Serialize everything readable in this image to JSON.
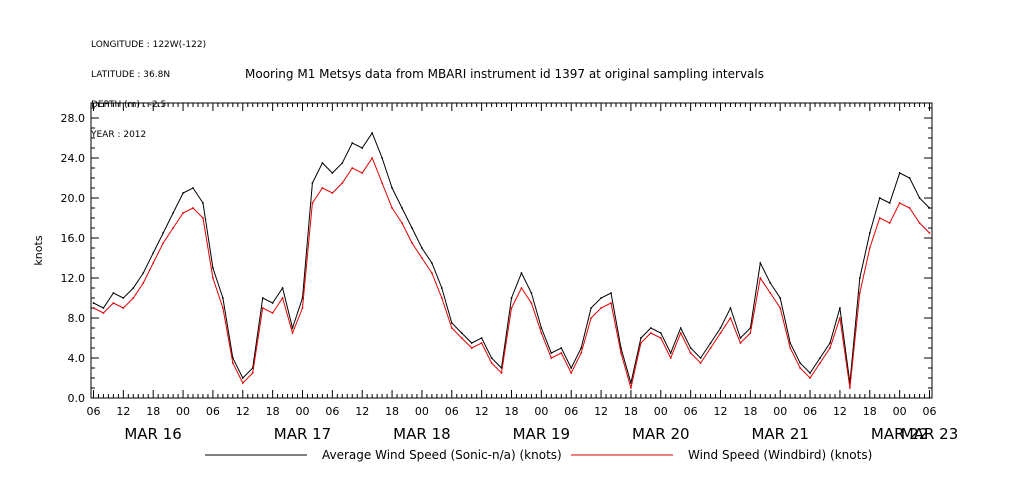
{
  "header": {
    "longitude": "LONGITUDE : 122W(-122)",
    "latitude": "LATITUDE : 36.8N",
    "depth": "DEPTH (m) : -2.5",
    "year": "YEAR : 2012"
  },
  "chart_data": {
    "type": "line",
    "title": "Mooring M1 Metsys data from MBARI instrument id 1397 at original sampling intervals",
    "ylabel": "knots",
    "xlabel": "",
    "ylim": [
      0,
      29.5
    ],
    "yticks": [
      "0.0",
      "4.0",
      "8.0",
      "12.0",
      "16.0",
      "20.0",
      "24.0",
      "28.0"
    ],
    "xlim_hours": [
      -0.5,
      168.5
    ],
    "hour_tick_labels": [
      "06",
      "12",
      "18",
      "00",
      "06",
      "12",
      "18",
      "00",
      "06",
      "12",
      "18",
      "00",
      "06",
      "12",
      "18",
      "00",
      "06",
      "12",
      "18",
      "00",
      "06",
      "12",
      "18",
      "00",
      "06",
      "12",
      "18",
      "00",
      "06"
    ],
    "date_labels": [
      "MAR 16",
      "MAR 17",
      "MAR 18",
      "MAR 19",
      "MAR 20",
      "MAR 21",
      "MAR 22",
      "MAR 23"
    ],
    "grid": false,
    "legend_position": "bottom",
    "colors": {
      "sonic": "#000000",
      "windbird": "#e00000"
    },
    "series": [
      {
        "name": "Average Wind Speed (Sonic-n/a) (knots)",
        "key": "sonic",
        "x_hours_from_mar16_06": [
          0,
          2,
          4,
          6,
          8,
          10,
          12,
          14,
          16,
          18,
          20,
          22,
          24,
          26,
          28,
          30,
          32,
          34,
          36,
          38,
          40,
          42,
          44,
          46,
          48,
          50,
          52,
          54,
          56,
          58,
          60,
          62,
          64,
          66,
          68,
          70,
          72,
          74,
          76,
          78,
          80,
          82,
          84,
          86,
          88,
          90,
          92,
          94,
          96,
          98,
          100,
          102,
          104,
          106,
          108,
          110,
          112,
          114,
          116,
          118,
          120,
          122,
          124,
          126,
          128,
          130,
          132,
          134,
          136,
          138,
          140,
          142,
          144,
          146,
          148,
          150,
          152,
          154,
          156,
          158,
          160,
          162,
          164,
          166,
          168
        ],
        "values": [
          9.5,
          9.0,
          10.5,
          10.0,
          11.0,
          12.5,
          14.5,
          16.5,
          18.5,
          20.5,
          21.0,
          19.5,
          13.0,
          10.0,
          4.0,
          2.0,
          3.0,
          10.0,
          9.5,
          11.0,
          7.0,
          10.0,
          21.5,
          23.5,
          22.5,
          23.5,
          25.5,
          25.0,
          26.5,
          24.0,
          21.0,
          19.0,
          17.0,
          15.0,
          13.5,
          11.0,
          7.5,
          6.5,
          5.5,
          6.0,
          4.0,
          3.0,
          10.0,
          12.5,
          10.5,
          7.0,
          4.5,
          5.0,
          3.0,
          5.0,
          9.0,
          10.0,
          10.5,
          5.0,
          1.5,
          6.0,
          7.0,
          6.5,
          4.5,
          7.0,
          5.0,
          4.0,
          5.5,
          7.0,
          9.0,
          6.0,
          7.0,
          13.5,
          11.5,
          10.0,
          5.5,
          3.5,
          2.5,
          4.0,
          5.5,
          9.0,
          1.5,
          12.0,
          16.5,
          20.0,
          19.5,
          22.5,
          22.0,
          20.0,
          19.0
        ]
      },
      {
        "name": "Wind Speed (Windbird) (knots)",
        "key": "windbird",
        "x_hours_from_mar16_06": [
          0,
          2,
          4,
          6,
          8,
          10,
          12,
          14,
          16,
          18,
          20,
          22,
          24,
          26,
          28,
          30,
          32,
          34,
          36,
          38,
          40,
          42,
          44,
          46,
          48,
          50,
          52,
          54,
          56,
          58,
          60,
          62,
          64,
          66,
          68,
          70,
          72,
          74,
          76,
          78,
          80,
          82,
          84,
          86,
          88,
          90,
          92,
          94,
          96,
          98,
          100,
          102,
          104,
          106,
          108,
          110,
          112,
          114,
          116,
          118,
          120,
          122,
          124,
          126,
          128,
          130,
          132,
          134,
          136,
          138,
          140,
          142,
          144,
          146,
          148,
          150,
          152,
          154,
          156,
          158,
          160,
          162,
          164,
          166,
          168
        ],
        "values": [
          9.0,
          8.5,
          9.5,
          9.0,
          10.0,
          11.5,
          13.5,
          15.5,
          17.0,
          18.5,
          19.0,
          18.0,
          12.0,
          9.0,
          3.5,
          1.5,
          2.5,
          9.0,
          8.5,
          10.0,
          6.5,
          9.0,
          19.5,
          21.0,
          20.5,
          21.5,
          23.0,
          22.5,
          24.0,
          21.5,
          19.0,
          17.5,
          15.5,
          14.0,
          12.5,
          10.0,
          7.0,
          6.0,
          5.0,
          5.5,
          3.5,
          2.5,
          9.0,
          11.0,
          9.5,
          6.5,
          4.0,
          4.5,
          2.5,
          4.5,
          8.0,
          9.0,
          9.5,
          4.5,
          1.0,
          5.5,
          6.5,
          6.0,
          4.0,
          6.5,
          4.5,
          3.5,
          5.0,
          6.5,
          8.0,
          5.5,
          6.5,
          12.0,
          10.5,
          9.0,
          5.0,
          3.0,
          2.0,
          3.5,
          5.0,
          8.0,
          1.0,
          10.5,
          15.0,
          18.0,
          17.5,
          19.5,
          19.0,
          17.5,
          16.5
        ]
      }
    ]
  }
}
